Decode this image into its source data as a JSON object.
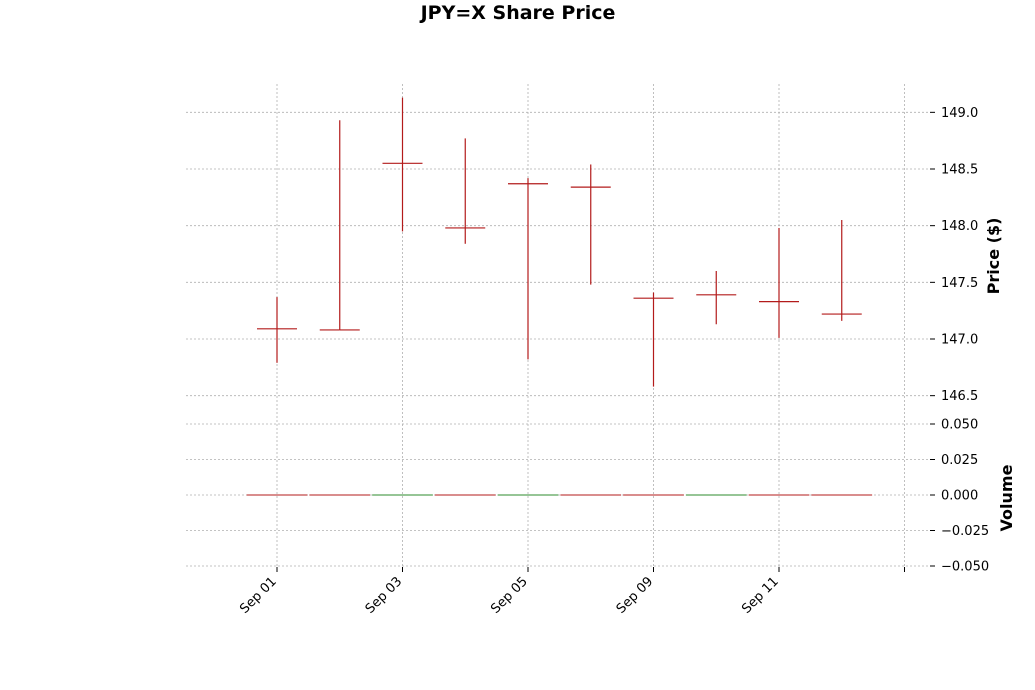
{
  "chart_data": {
    "type": "ohlc",
    "title": "JPY=X Share Price",
    "price_panel": {
      "ylabel": "Price ($)",
      "ylim": [
        146.25,
        149.25
      ],
      "yticks": [
        146.5,
        147.0,
        147.5,
        148.0,
        148.5,
        149.0
      ],
      "ytick_labels": [
        "146.5",
        "147.0",
        "147.5",
        "148.0",
        "148.5",
        "149.0"
      ],
      "color": "#b31b1b",
      "grid": true
    },
    "volume_panel": {
      "ylabel": "Volume",
      "ylim": [
        -0.05,
        0.05
      ],
      "yticks": [
        -0.05,
        -0.025,
        0.0,
        0.025,
        0.05
      ],
      "ytick_labels": [
        "−0.050",
        "−0.025",
        "0.000",
        "0.025",
        "0.050"
      ],
      "grid": true
    },
    "x_tick_labels": [
      "Sep 01",
      "Sep 03",
      "Sep 05",
      "Sep 09",
      "Sep 11",
      ""
    ],
    "x_tick_indices": [
      0,
      2,
      4,
      6,
      8,
      10
    ],
    "candles": [
      {
        "index": 0,
        "open": 147.09,
        "high": 147.37,
        "low": 146.79,
        "close": 147.09
      },
      {
        "index": 1,
        "open": 147.08,
        "high": 148.93,
        "low": 147.08,
        "close": 147.08
      },
      {
        "index": 2,
        "open": 148.55,
        "high": 149.13,
        "low": 147.95,
        "close": 148.55
      },
      {
        "index": 3,
        "open": 147.98,
        "high": 148.77,
        "low": 147.84,
        "close": 147.98
      },
      {
        "index": 4,
        "open": 148.37,
        "high": 148.42,
        "low": 146.82,
        "close": 148.37
      },
      {
        "index": 5,
        "open": 148.34,
        "high": 148.54,
        "low": 147.48,
        "close": 148.34
      },
      {
        "index": 6,
        "open": 147.36,
        "high": 147.41,
        "low": 146.58,
        "close": 147.36
      },
      {
        "index": 7,
        "open": 147.39,
        "high": 147.6,
        "low": 147.13,
        "close": 147.39
      },
      {
        "index": 8,
        "open": 147.33,
        "high": 147.98,
        "low": 147.01,
        "close": 147.33
      },
      {
        "index": 9,
        "open": 147.22,
        "high": 148.05,
        "low": 147.16,
        "close": 147.22
      }
    ],
    "volume": [
      {
        "index": 0,
        "value": 0,
        "color": "#b31b1b"
      },
      {
        "index": 1,
        "value": 0,
        "color": "#b31b1b"
      },
      {
        "index": 2,
        "value": 0,
        "color": "#2e8b2e"
      },
      {
        "index": 3,
        "value": 0,
        "color": "#b31b1b"
      },
      {
        "index": 4,
        "value": 0,
        "color": "#2e8b2e"
      },
      {
        "index": 5,
        "value": 0,
        "color": "#b31b1b"
      },
      {
        "index": 6,
        "value": 0,
        "color": "#b31b1b"
      },
      {
        "index": 7,
        "value": 0,
        "color": "#2e8b2e"
      },
      {
        "index": 8,
        "value": 0,
        "color": "#b31b1b"
      },
      {
        "index": 9,
        "value": 0,
        "color": "#b31b1b"
      }
    ]
  }
}
